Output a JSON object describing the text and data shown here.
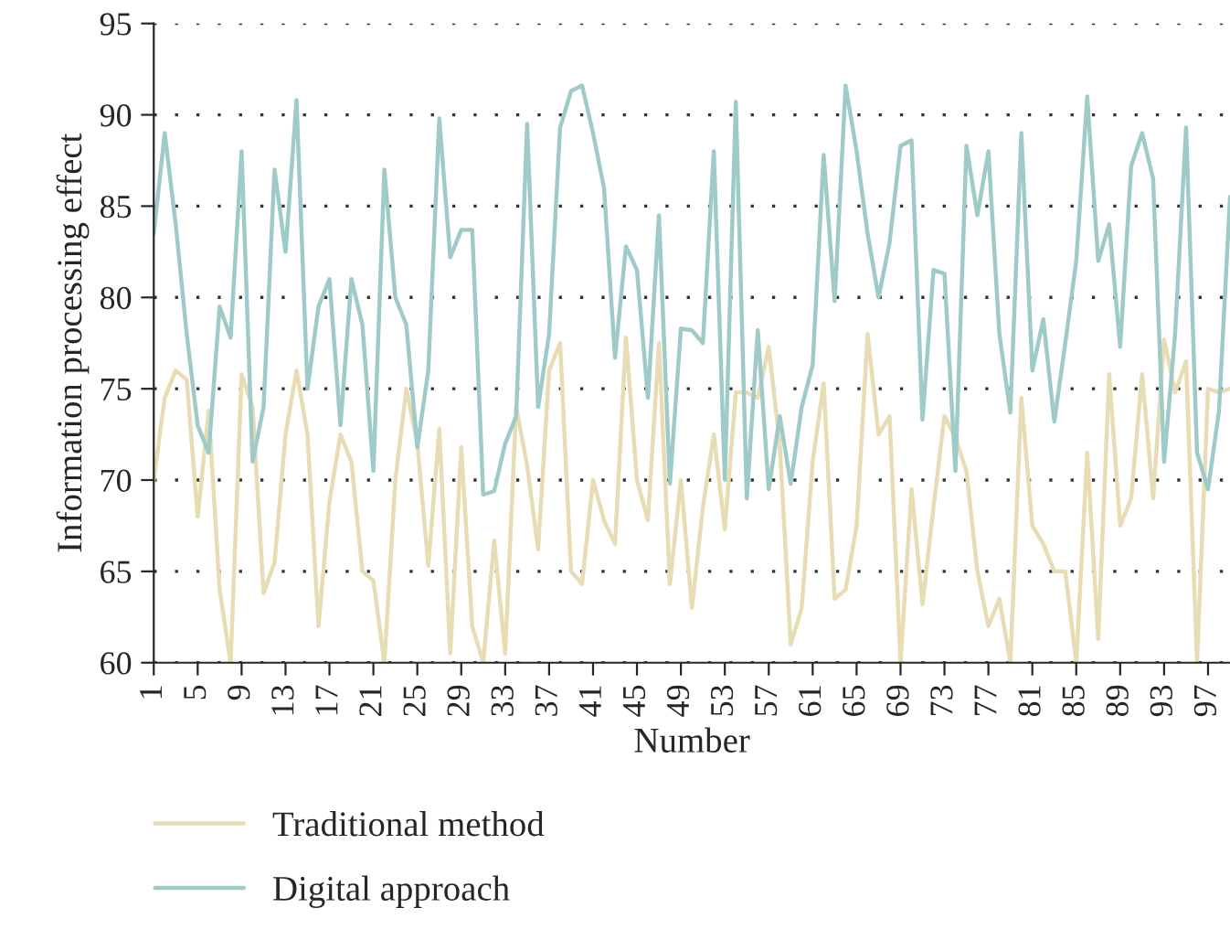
{
  "chart_data": {
    "type": "line",
    "xlabel": "Number",
    "ylabel": "Information processing effect",
    "x": [
      1,
      2,
      3,
      4,
      5,
      6,
      7,
      8,
      9,
      10,
      11,
      12,
      13,
      14,
      15,
      16,
      17,
      18,
      19,
      20,
      21,
      22,
      23,
      24,
      25,
      26,
      27,
      28,
      29,
      30,
      31,
      32,
      33,
      34,
      35,
      36,
      37,
      38,
      39,
      40,
      41,
      42,
      43,
      44,
      45,
      46,
      47,
      48,
      49,
      50,
      51,
      52,
      53,
      54,
      55,
      56,
      57,
      58,
      59,
      60,
      61,
      62,
      63,
      64,
      65,
      66,
      67,
      68,
      69,
      70,
      71,
      72,
      73,
      74,
      75,
      76,
      77,
      78,
      79,
      80,
      81,
      82,
      83,
      84,
      85,
      86,
      87,
      88,
      89,
      90,
      91,
      92,
      93,
      94,
      95,
      96,
      97,
      98,
      99
    ],
    "series": [
      {
        "name": "Traditional method",
        "color": "#e8dcb5",
        "values": [
          70,
          74.5,
          76,
          75.5,
          68,
          73.8,
          64,
          60,
          75.8,
          74,
          63.8,
          65.5,
          72.5,
          76,
          72.5,
          62,
          68.8,
          72.5,
          71,
          65,
          64.5,
          60,
          70,
          75,
          72,
          65.3,
          72.8,
          60.5,
          71.8,
          62,
          60,
          66.7,
          60.5,
          74,
          70.8,
          66.2,
          76,
          77.5,
          65,
          64.3,
          70,
          67.8,
          66.5,
          77.8,
          70,
          67.8,
          77.5,
          64.3,
          70,
          63,
          68.5,
          72.5,
          67.3,
          74.8,
          74.8,
          74.5,
          77.3,
          72,
          61,
          63,
          71,
          75.3,
          63.5,
          64,
          67.5,
          78,
          72.5,
          73.5,
          60,
          69.5,
          63.2,
          68.5,
          73.5,
          72.3,
          70.5,
          65,
          62,
          63.5,
          60,
          74.5,
          67.5,
          66.5,
          65,
          65,
          60,
          71.5,
          61.3,
          75.8,
          67.5,
          69,
          75.8,
          69,
          77.7,
          74.8,
          76.5,
          60,
          75,
          74.8,
          75
        ]
      },
      {
        "name": "Digital approach",
        "color": "#9ecac8",
        "values": [
          83.5,
          89,
          84,
          78,
          73,
          71.5,
          79.5,
          77.8,
          88,
          71,
          74,
          87,
          82.5,
          90.8,
          75,
          79.5,
          81,
          73,
          81,
          78.5,
          70.5,
          87,
          80,
          78.5,
          71.8,
          76,
          89.8,
          82.2,
          83.7,
          83.7,
          69.2,
          69.4,
          72,
          73.5,
          89.5,
          74,
          78,
          89.3,
          91.3,
          91.6,
          89,
          86,
          76.7,
          82.8,
          81.5,
          74.5,
          84.5,
          69.8,
          78.3,
          78.2,
          77.5,
          88,
          70,
          90.7,
          69,
          78.2,
          69.5,
          73.5,
          69.8,
          74,
          76.3,
          87.8,
          79.8,
          91.6,
          88,
          83.5,
          80,
          83,
          88.3,
          88.6,
          73.3,
          81.5,
          81.3,
          70.5,
          88.3,
          84.5,
          88,
          78,
          73.7,
          89,
          76,
          78.8,
          73.2,
          77.5,
          82,
          91,
          82,
          84,
          77.3,
          87.2,
          89,
          86.5,
          71,
          78,
          89.3,
          71.5,
          69.5,
          73.8,
          85.5
        ]
      }
    ],
    "xlim": [
      1,
      99
    ],
    "xticks": [
      1,
      5,
      9,
      13,
      17,
      21,
      25,
      29,
      33,
      37,
      41,
      45,
      49,
      53,
      57,
      61,
      65,
      69,
      73,
      77,
      81,
      85,
      89,
      93,
      97
    ],
    "ylim": [
      60,
      95
    ],
    "yticks": [
      60,
      65,
      70,
      75,
      80,
      85,
      90,
      95
    ],
    "grid": "y",
    "legend": "bottom",
    "line_style": "solid",
    "marker": "none"
  }
}
